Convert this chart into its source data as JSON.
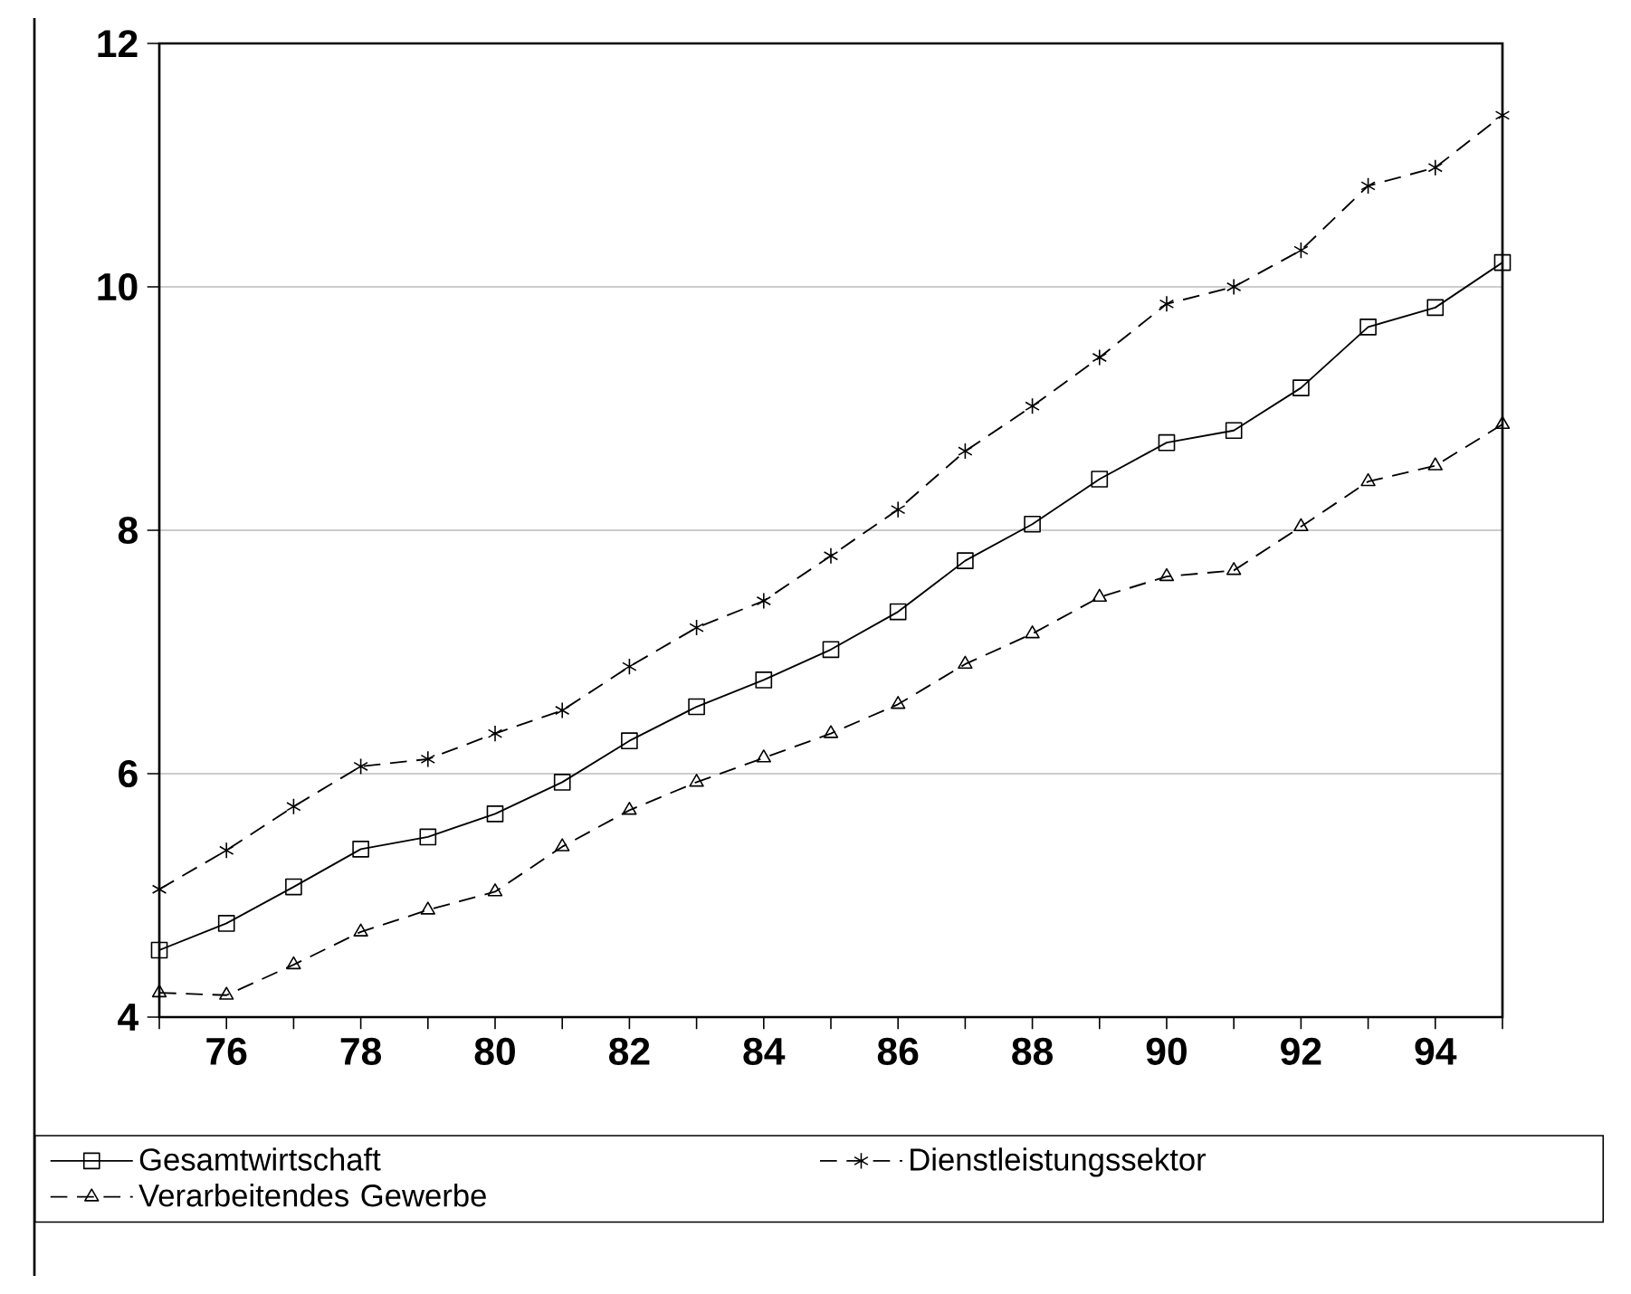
{
  "chart_data": {
    "type": "line",
    "x": [
      75,
      76,
      77,
      78,
      79,
      80,
      81,
      82,
      83,
      84,
      85,
      86,
      87,
      88,
      89,
      90,
      91,
      92,
      93,
      94,
      95
    ],
    "series": [
      {
        "name": "Gesamtwirtschaft",
        "color": "#000000",
        "marker": "square",
        "line_style": "solid",
        "values": [
          4.55,
          4.77,
          5.07,
          5.38,
          5.48,
          5.67,
          5.93,
          6.27,
          6.55,
          6.77,
          7.02,
          7.33,
          7.75,
          8.05,
          8.42,
          8.72,
          8.82,
          9.17,
          9.67,
          9.83,
          10.2
        ]
      },
      {
        "name": "Dienstleistungssektor",
        "color": "#000000",
        "marker": "cross",
        "line_style": "dashed",
        "values": [
          5.05,
          5.37,
          5.73,
          6.06,
          6.12,
          6.33,
          6.52,
          6.88,
          7.2,
          7.42,
          7.79,
          8.17,
          8.65,
          9.02,
          9.42,
          9.86,
          10.0,
          10.3,
          10.83,
          10.98,
          11.41
        ]
      },
      {
        "name": "Verarbeitendes Gewerbe",
        "color": "#000000",
        "marker": "triangle",
        "line_style": "dashed",
        "values": [
          4.2,
          4.18,
          4.43,
          4.7,
          4.88,
          5.03,
          5.4,
          5.7,
          5.93,
          6.13,
          6.33,
          6.57,
          6.9,
          7.15,
          7.45,
          7.62,
          7.67,
          8.03,
          8.4,
          8.53,
          8.87
        ]
      }
    ],
    "xlim": [
      75,
      95
    ],
    "xticks": [
      {
        "value": 75,
        "label": null
      },
      76,
      {
        "value": 77,
        "label": null
      },
      78,
      {
        "value": 79,
        "label": null
      },
      80,
      {
        "value": 81,
        "label": null
      },
      82,
      {
        "value": 83,
        "label": null
      },
      84,
      {
        "value": 85,
        "label": null
      },
      86,
      {
        "value": 87,
        "label": null
      },
      88,
      {
        "value": 89,
        "label": null
      },
      90,
      {
        "value": 91,
        "label": null
      },
      92,
      {
        "value": 93,
        "label": null
      },
      94,
      {
        "value": 95,
        "label": null
      }
    ],
    "ylim": [
      4,
      12
    ],
    "yticks": [
      4,
      6,
      8,
      10,
      12
    ],
    "grid": "y",
    "legend": "bottom"
  }
}
